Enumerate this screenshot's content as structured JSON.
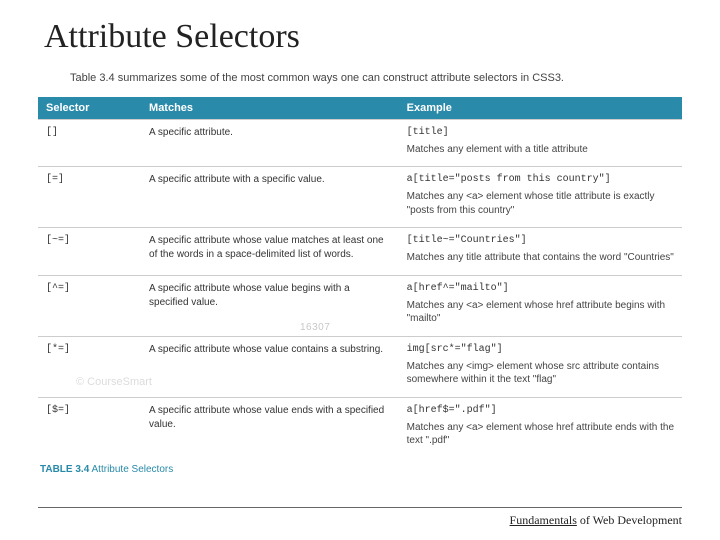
{
  "title": "Attribute Selectors",
  "intro": "Table 3.4 summarizes some of the most common ways one can construct attribute selectors in CSS3.",
  "table": {
    "headers": [
      "Selector",
      "Matches",
      "Example"
    ],
    "rows": [
      {
        "selector": "[]",
        "matches": "A specific attribute.",
        "example_code": "[title]",
        "example_desc": "Matches any element with a title attribute"
      },
      {
        "selector": "[=]",
        "matches": "A specific attribute with a specific value.",
        "example_code": "a[title=\"posts from this country\"]",
        "example_desc": "Matches any <a> element whose title attribute is exactly \"posts from this country\""
      },
      {
        "selector": "[~=]",
        "matches": "A specific attribute whose value matches at least one of the words in a space-delimited list of words.",
        "example_code": "[title~=\"Countries\"]",
        "example_desc": "Matches any title attribute that contains the word \"Countries\""
      },
      {
        "selector": "[^=]",
        "matches": "A specific attribute whose value begins with a specified value.",
        "example_code": "a[href^=\"mailto\"]",
        "example_desc": "Matches any <a> element whose href attribute begins with \"mailto\""
      },
      {
        "selector": "[*=]",
        "matches": "A specific attribute whose value contains a substring.",
        "example_code": "img[src*=\"flag\"]",
        "example_desc": "Matches any <img> element whose src attribute contains somewhere within it the text \"flag\""
      },
      {
        "selector": "[$=]",
        "matches": "A specific attribute whose value ends with a specified value.",
        "example_code": "a[href$=\".pdf\"]",
        "example_desc": "Matches any <a> element whose href attribute ends with the text \".pdf\""
      }
    ],
    "caption_label": "TABLE 3.4",
    "caption_text": "Attribute Selectors"
  },
  "watermark_num": "16307",
  "watermark_text": "© CourseSmart",
  "footer": {
    "underlined": "Fundamentals",
    "rest": " of Web Development"
  },
  "colors": {
    "header_bg": "#2a8aa9",
    "header_fg": "#ffffff",
    "caption_color": "#288aa8",
    "rule_color": "#666666"
  }
}
